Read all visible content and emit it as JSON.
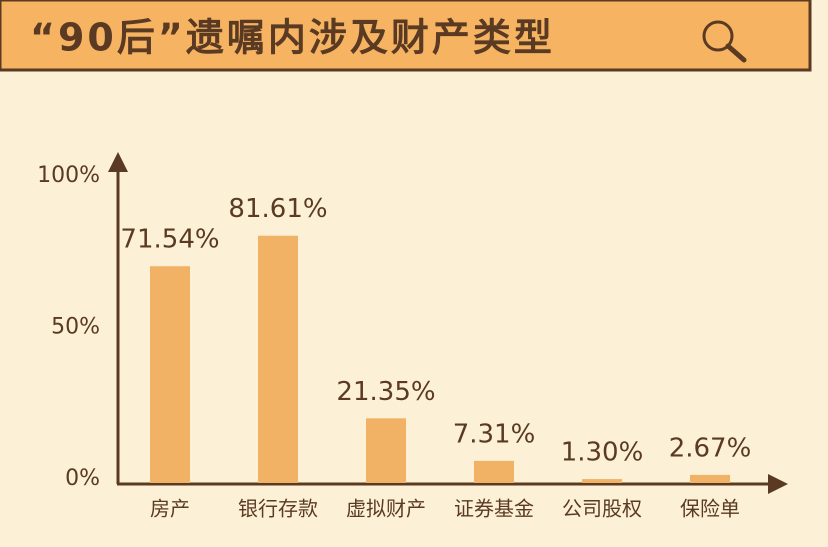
{
  "chart_data": {
    "type": "bar",
    "title": "“90后”遗嘱内涉及财产类型",
    "categories": [
      "房产",
      "银行存款",
      "虚拟财产",
      "证券基金",
      "公司股权",
      "保险单"
    ],
    "values": [
      71.54,
      81.61,
      21.35,
      7.31,
      1.3,
      2.67
    ],
    "value_labels": [
      "71.54%",
      "81.61%",
      "21.35%",
      "7.31%",
      "1.30%",
      "2.67%"
    ],
    "color": "#f2b265",
    "ylim": [
      0,
      100
    ],
    "yticks": [
      {
        "value": 0,
        "label": "0%"
      },
      {
        "value": 50,
        "label": "50%"
      },
      {
        "value": 100,
        "label": "100%"
      }
    ],
    "grid": false
  }
}
